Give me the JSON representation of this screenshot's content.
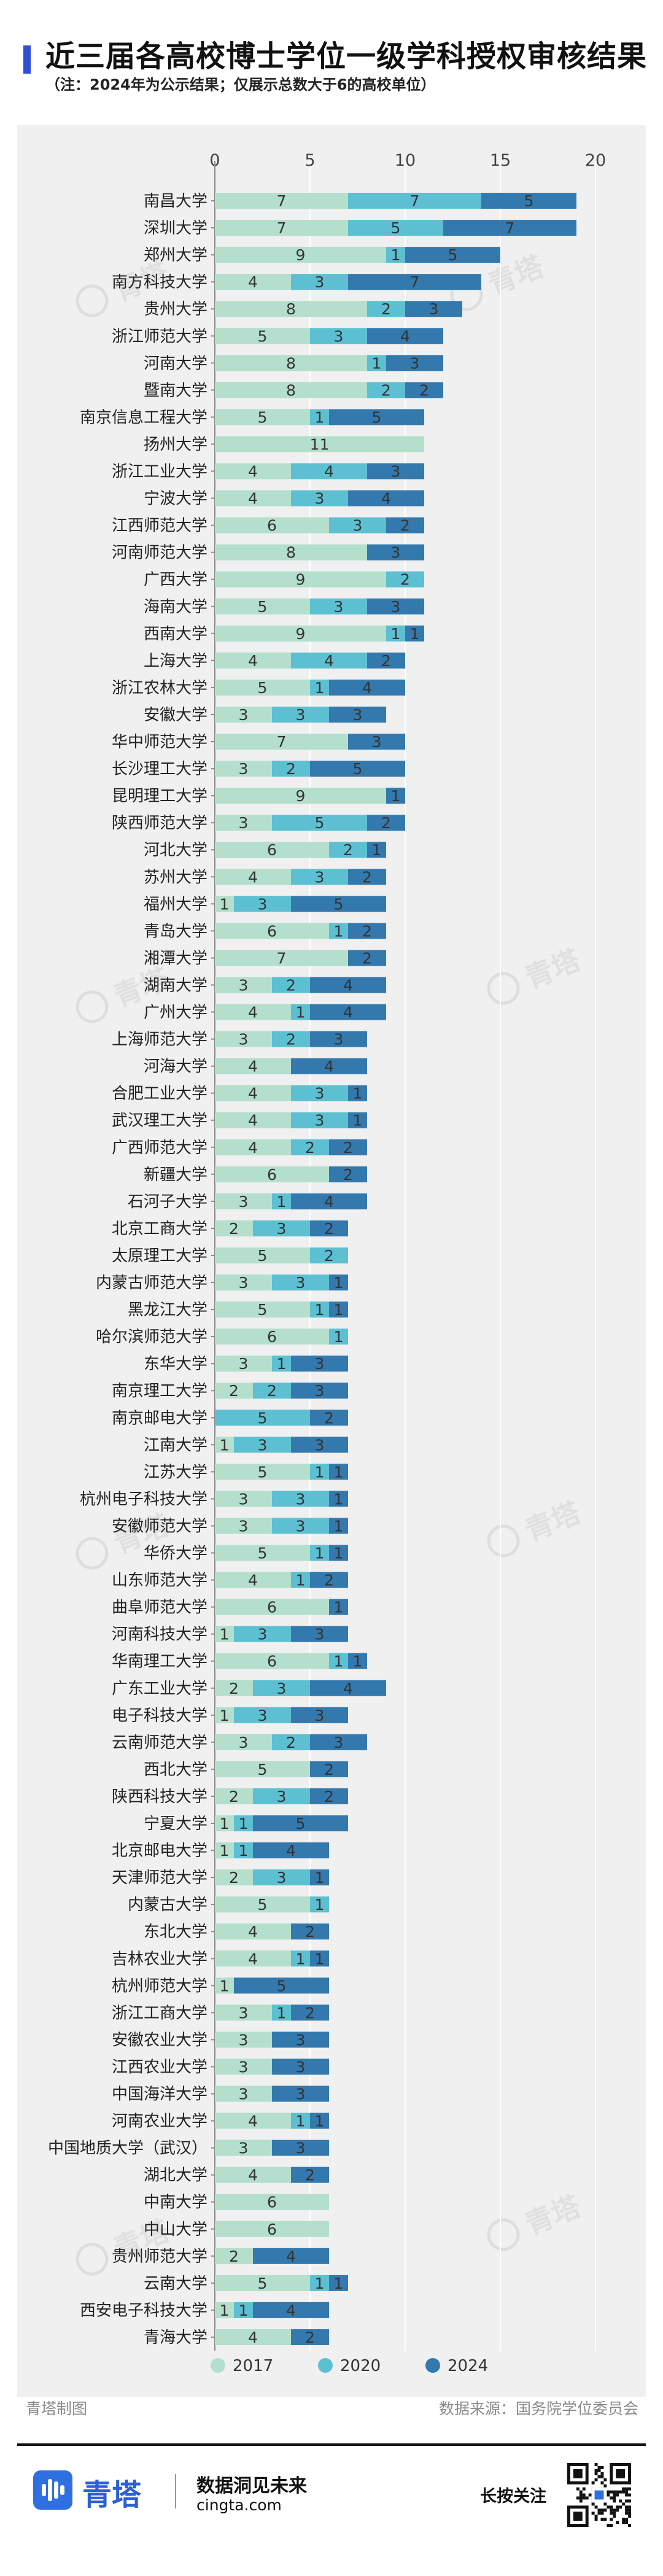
{
  "header": {
    "title": "近三届各高校博士学位一级学科授权审核结果",
    "subtitle": "（注：2024年为公示结果；仅展示总数大于6的高校单位）"
  },
  "footer": {
    "credit": "青塔制图",
    "source": "数据来源：国务院学位委员会",
    "brand_name": "青塔",
    "brand_slogan": "数据洞见未来",
    "brand_url": "cingta.com",
    "long_press": "长按关注",
    "watermark": "青塔"
  },
  "colors": {
    "s2017": "#b3dfcc",
    "s2020": "#5cc0d2",
    "s2024": "#3479ad",
    "panel": "#f0f0f0",
    "brand": "#2f6fe0"
  },
  "chart_data": {
    "type": "bar",
    "orientation": "horizontal",
    "stacked": true,
    "xlim": [
      0,
      20
    ],
    "xticks": [
      "0",
      "5",
      "10",
      "15",
      "20"
    ],
    "grid": true,
    "legend_position": "bottom",
    "series": [
      {
        "name": "2017",
        "values": [
          7,
          7,
          9,
          4,
          8,
          5,
          8,
          8,
          5,
          11,
          4,
          4,
          6,
          8,
          9,
          5,
          9,
          4,
          5,
          3,
          7,
          3,
          9,
          3,
          6,
          4,
          1,
          6,
          7,
          3,
          4,
          3,
          4,
          4,
          4,
          4,
          6,
          3,
          2,
          5,
          3,
          5,
          6,
          3,
          2,
          0,
          1,
          5,
          3,
          3,
          5,
          4,
          6,
          1,
          6,
          2,
          1,
          3,
          5,
          2,
          1,
          1,
          2,
          5,
          4,
          4,
          1,
          3,
          3,
          3,
          3,
          4,
          3,
          4,
          6,
          6,
          2,
          5,
          1,
          4
        ]
      },
      {
        "name": "2020",
        "values": [
          7,
          5,
          1,
          3,
          2,
          3,
          1,
          2,
          1,
          0,
          4,
          3,
          3,
          0,
          2,
          3,
          1,
          4,
          1,
          3,
          0,
          2,
          0,
          5,
          2,
          3,
          3,
          1,
          0,
          2,
          1,
          2,
          0,
          3,
          3,
          2,
          0,
          1,
          3,
          2,
          3,
          1,
          1,
          1,
          2,
          5,
          3,
          1,
          3,
          3,
          1,
          1,
          0,
          3,
          1,
          3,
          3,
          2,
          0,
          3,
          1,
          1,
          3,
          1,
          0,
          1,
          0,
          1,
          0,
          0,
          0,
          1,
          0,
          0,
          0,
          0,
          0,
          1,
          1,
          0
        ]
      },
      {
        "name": "2024",
        "values": [
          5,
          7,
          5,
          7,
          3,
          4,
          3,
          2,
          5,
          0,
          3,
          4,
          2,
          3,
          0,
          3,
          1,
          2,
          4,
          3,
          3,
          5,
          1,
          2,
          1,
          2,
          5,
          2,
          2,
          4,
          4,
          3,
          4,
          1,
          1,
          2,
          2,
          4,
          2,
          0,
          1,
          1,
          0,
          3,
          3,
          2,
          3,
          1,
          1,
          1,
          1,
          2,
          1,
          3,
          1,
          4,
          3,
          3,
          2,
          2,
          5,
          4,
          1,
          0,
          2,
          1,
          5,
          2,
          3,
          3,
          3,
          1,
          3,
          2,
          0,
          0,
          4,
          1,
          4,
          2
        ]
      }
    ],
    "categories": [
      "南昌大学",
      "深圳大学",
      "郑州大学",
      "南方科技大学",
      "贵州大学",
      "浙江师范大学",
      "河南大学",
      "暨南大学",
      "南京信息工程大学",
      "扬州大学",
      "浙江工业大学",
      "宁波大学",
      "江西师范大学",
      "河南师范大学",
      "广西大学",
      "海南大学",
      "西南大学",
      "上海大学",
      "浙江农林大学",
      "安徽大学",
      "华中师范大学",
      "长沙理工大学",
      "昆明理工大学",
      "陕西师范大学",
      "河北大学",
      "苏州大学",
      "福州大学",
      "青岛大学",
      "湘潭大学",
      "湖南大学",
      "广州大学",
      "上海师范大学",
      "河海大学",
      "合肥工业大学",
      "武汉理工大学",
      "广西师范大学",
      "新疆大学",
      "石河子大学",
      "北京工商大学",
      "太原理工大学",
      "内蒙古师范大学",
      "黑龙江大学",
      "哈尔滨师范大学",
      "东华大学",
      "南京理工大学",
      "南京邮电大学",
      "江南大学",
      "江苏大学",
      "杭州电子科技大学",
      "安徽师范大学",
      "华侨大学",
      "山东师范大学",
      "曲阜师范大学",
      "河南科技大学",
      "华南理工大学",
      "广东工业大学",
      "电子科技大学",
      "云南师范大学",
      "西北大学",
      "陕西科技大学",
      "宁夏大学",
      "北京邮电大学",
      "天津师范大学",
      "内蒙古大学",
      "东北大学",
      "吉林农业大学",
      "杭州师范大学",
      "浙江工商大学",
      "安徽农业大学",
      "江西农业大学",
      "中国海洋大学",
      "河南农业大学",
      "中国地质大学（武汉）",
      "湖北大学",
      "中南大学",
      "中山大学",
      "贵州师范大学",
      "云南大学",
      "西安电子科技大学",
      "青海大学"
    ]
  }
}
